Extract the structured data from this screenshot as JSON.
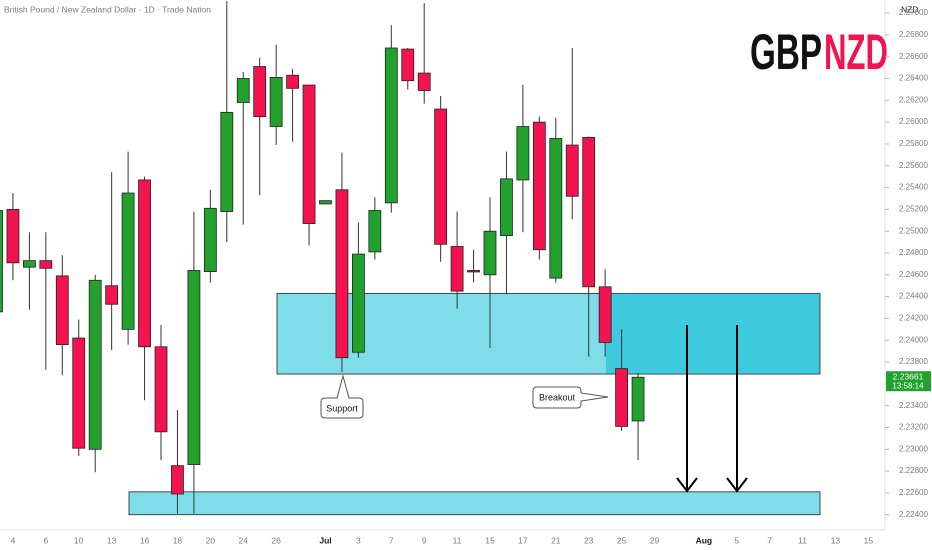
{
  "chart_data": {
    "type": "candlestick",
    "title": "British Pound / New Zealand Dollar · 1D · Trade Nation",
    "currency": "NZD",
    "logo_left": "GBP",
    "logo_right": "NZD",
    "countdown": "13:58:14",
    "categories": [
      null,
      "4",
      null,
      "6",
      null,
      "10",
      null,
      "13",
      null,
      "16",
      null,
      "18",
      null,
      "20",
      null,
      "24",
      null,
      "26",
      null,
      null,
      "Jul",
      null,
      "3",
      null,
      "7",
      null,
      "9",
      null,
      "11",
      null,
      "15",
      null,
      "17",
      null,
      "21",
      null,
      "23",
      null,
      "25",
      null,
      "29",
      null,
      null,
      "Aug",
      null,
      "5",
      null,
      "7",
      null,
      "11",
      null,
      "13",
      null,
      "15"
    ],
    "open": [
      2.2426,
      2.252,
      2.2467,
      2.2473,
      2.2459,
      2.2402,
      2.23,
      2.245,
      2.241,
      2.2547,
      2.2394,
      2.2285,
      2.2286,
      2.2463,
      2.2518,
      2.2618,
      2.2651,
      2.2596,
      2.2643,
      2.2634,
      2.2525,
      2.2538,
      2.2389,
      2.2481,
      2.2526,
      2.2667,
      2.2645,
      2.2612,
      2.2486,
      2.2464,
      2.246,
      2.2496,
      2.2547,
      2.26,
      2.2457,
      2.2579,
      2.2586,
      2.2449,
      2.2374,
      2.2326,
      null,
      null,
      null,
      null,
      null,
      null,
      null,
      null,
      null,
      null,
      null,
      null,
      null,
      null
    ],
    "high": [
      2.2529,
      2.2535,
      2.2499,
      2.2499,
      2.2478,
      2.2419,
      2.246,
      2.2554,
      2.2573,
      2.255,
      2.2414,
      2.2336,
      2.2518,
      2.2538,
      2.2711,
      2.2646,
      2.2659,
      2.2671,
      2.2649,
      2.2634,
      2.2528,
      2.2572,
      2.2508,
      2.2531,
      2.2689,
      2.2668,
      2.2709,
      2.2624,
      2.2518,
      2.2483,
      2.2531,
      2.2573,
      2.2634,
      2.2605,
      2.2604,
      2.2668,
      2.2587,
      2.2465,
      2.241,
      2.237,
      null,
      null,
      null,
      null,
      null,
      null,
      null,
      null,
      null,
      null,
      null,
      null,
      null,
      null
    ],
    "low": [
      2.2419,
      2.2455,
      2.2428,
      2.2373,
      2.2368,
      2.2294,
      2.2279,
      2.2391,
      2.2396,
      2.2345,
      2.229,
      2.2241,
      2.2241,
      2.2453,
      2.249,
      2.2506,
      2.2533,
      2.2579,
      2.2582,
      2.2487,
      2.2525,
      2.2371,
      2.2384,
      2.2474,
      2.2517,
      2.263,
      2.2617,
      2.2472,
      2.2429,
      2.2453,
      2.2393,
      2.2442,
      2.2499,
      2.2474,
      2.2453,
      2.2511,
      2.2385,
      2.2385,
      2.2317,
      2.229,
      null,
      null,
      null,
      null,
      null,
      null,
      null,
      null,
      null,
      null,
      null,
      null,
      null,
      null
    ],
    "close": [
      2.2519,
      2.2471,
      2.2473,
      2.2466,
      2.2396,
      2.2301,
      2.2455,
      2.2433,
      2.2535,
      2.2394,
      2.2316,
      2.2259,
      2.2464,
      2.2521,
      2.2609,
      2.264,
      2.2605,
      2.2641,
      2.2631,
      2.2507,
      2.2528,
      2.2384,
      2.2479,
      2.2519,
      2.2668,
      2.2638,
      2.2629,
      2.2488,
      2.2445,
      2.2463,
      2.25,
      2.2548,
      2.2596,
      2.2483,
      2.2585,
      2.2532,
      2.2449,
      2.2398,
      2.2321,
      2.23661,
      null,
      null,
      null,
      null,
      null,
      null,
      null,
      null,
      null,
      null,
      null,
      null,
      null,
      null
    ],
    "up_color": "#22a12e",
    "down_color": "#f2134f",
    "zones": [
      {
        "low": 2.2369,
        "high": 2.2443
      },
      {
        "low": 2.224,
        "high": 2.2261
      }
    ],
    "annotations": [
      "Support",
      "Breakout"
    ],
    "ylim": [
      2.2226,
      2.2712
    ],
    "yticks": [
      {
        "value": 2.224,
        "label": "2.22400"
      },
      {
        "value": 2.226,
        "label": "2.22600"
      },
      {
        "value": 2.228,
        "label": "2.22800"
      },
      {
        "value": 2.23,
        "label": "2.23000"
      },
      {
        "value": 2.232,
        "label": "2.23200"
      },
      {
        "value": 2.234,
        "label": "2.23400"
      },
      {
        "value": 2.236,
        "label": "2.23600"
      },
      {
        "value": 2.238,
        "label": "2.23800"
      },
      {
        "value": 2.24,
        "label": "2.24000"
      },
      {
        "value": 2.242,
        "label": "2.24200"
      },
      {
        "value": 2.244,
        "label": "2.24400"
      },
      {
        "value": 2.246,
        "label": "2.24600"
      },
      {
        "value": 2.248,
        "label": "2.24800"
      },
      {
        "value": 2.25,
        "label": "2.25000"
      },
      {
        "value": 2.252,
        "label": "2.25200"
      },
      {
        "value": 2.254,
        "label": "2.25400"
      },
      {
        "value": 2.256,
        "label": "2.25600"
      },
      {
        "value": 2.258,
        "label": "2.25800"
      },
      {
        "value": 2.26,
        "label": "2.26000"
      },
      {
        "value": 2.262,
        "label": "2.26200"
      },
      {
        "value": 2.264,
        "label": "2.26400"
      },
      {
        "value": 2.266,
        "label": "2.26600"
      },
      {
        "value": 2.268,
        "label": "2.26800"
      },
      {
        "value": 2.27,
        "label": "2.27000"
      }
    ],
    "grid": false
  }
}
